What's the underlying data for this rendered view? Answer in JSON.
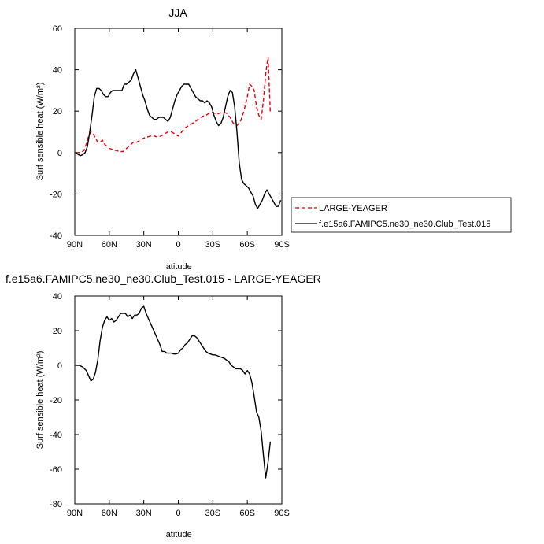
{
  "chart_data": [
    {
      "type": "line",
      "title": "JJA",
      "xlabel": "latitude",
      "ylabel": "Surf sensible heat (W/m²)",
      "xlim": [
        90,
        -90
      ],
      "ylim": [
        -40,
        60
      ],
      "x_ticks": [
        "90N",
        "60N",
        "30N",
        "0",
        "30S",
        "60S",
        "90S"
      ],
      "x_tick_values": [
        90,
        60,
        30,
        0,
        -30,
        -60,
        -90
      ],
      "y_ticks": [
        "-40",
        "-20",
        "0",
        "20",
        "40",
        "60"
      ],
      "legend_position": "right",
      "series": [
        {
          "name": "LARGE-YEAGER",
          "color": "#e8000b",
          "dash": "dashed",
          "x": [
            89,
            85,
            82,
            80,
            78,
            76,
            74,
            72,
            70,
            68,
            66,
            64,
            62,
            60,
            57,
            54,
            51,
            48,
            45,
            42,
            39,
            36,
            33,
            30,
            27,
            24,
            21,
            18,
            15,
            12,
            9,
            6,
            3,
            0,
            -3,
            -6,
            -9,
            -12,
            -15,
            -18,
            -21,
            -24,
            -27,
            -30,
            -33,
            -36,
            -39,
            -42,
            -45,
            -48,
            -51,
            -54,
            -57,
            -60,
            -62,
            -64,
            -66,
            -68,
            -70,
            -72,
            -74,
            -76,
            -78,
            -80
          ],
          "y": [
            0,
            0,
            1,
            4,
            8,
            10,
            9,
            7,
            5,
            5,
            6,
            4,
            3,
            2,
            1.5,
            1,
            0.5,
            0.5,
            2,
            3.5,
            5,
            5,
            6,
            7,
            7.5,
            8,
            8,
            7.5,
            8,
            9,
            10,
            10,
            9,
            8,
            10,
            12,
            13,
            14,
            15,
            16.5,
            17.5,
            18,
            19,
            19.5,
            18.5,
            19,
            19.5,
            19,
            17,
            14,
            13,
            15,
            20,
            27,
            33,
            32,
            30,
            22,
            18,
            16,
            25,
            38,
            46,
            19
          ]
        },
        {
          "name": "f.e15a6.FAMIPC5.ne30_ne30.Club_Test.015",
          "color": "#000000",
          "dash": "solid",
          "x": [
            89,
            87,
            85,
            83,
            81,
            79,
            77,
            75,
            73,
            71,
            69,
            67,
            65,
            63,
            61,
            59,
            57,
            55,
            53,
            51,
            49,
            47,
            45,
            43,
            41,
            39,
            37,
            35,
            33,
            31,
            29,
            27,
            25,
            23,
            21,
            19,
            17,
            15,
            13,
            11,
            9,
            7,
            5,
            3,
            1,
            -1,
            -3,
            -5,
            -7,
            -9,
            -11,
            -13,
            -15,
            -17,
            -19,
            -21,
            -23,
            -25,
            -27,
            -29,
            -31,
            -33,
            -35,
            -37,
            -39,
            -41,
            -43,
            -45,
            -47,
            -49,
            -51,
            -53,
            -55,
            -57,
            -59,
            -61,
            -63,
            -65,
            -67,
            -69,
            -71,
            -73,
            -75,
            -77,
            -79,
            -81,
            -83,
            -85,
            -87,
            -89
          ],
          "y": [
            0,
            -1,
            -1.5,
            -1,
            0,
            3,
            10,
            18,
            27,
            31,
            31,
            30,
            28,
            27,
            27,
            29,
            30,
            30,
            30,
            30,
            30,
            33,
            33,
            34,
            35,
            38,
            40,
            36,
            32,
            28,
            25,
            21,
            18,
            17,
            16,
            16,
            17,
            17,
            17,
            16,
            15,
            17,
            21,
            25,
            28,
            30,
            32,
            33,
            33,
            33,
            31,
            29,
            27,
            26,
            25,
            25,
            24,
            25,
            24,
            22,
            18,
            15,
            13,
            14,
            17,
            22,
            27,
            30,
            29,
            22,
            10,
            -5,
            -13,
            -15,
            -16,
            -17,
            -19,
            -21,
            -25,
            -27,
            -25,
            -23,
            -20,
            -18,
            -20,
            -22,
            -24,
            -26,
            -26,
            -23
          ]
        }
      ]
    },
    {
      "type": "line",
      "title": "f.e15a6.FAMIPC5.ne30_ne30.Club_Test.015 - LARGE-YEAGER",
      "xlabel": "latitude",
      "ylabel": "Surf sensible heat (W/m²)",
      "xlim": [
        90,
        -90
      ],
      "ylim": [
        -80,
        40
      ],
      "x_ticks": [
        "90N",
        "60N",
        "30N",
        "0",
        "30S",
        "60S",
        "90S"
      ],
      "x_tick_values": [
        90,
        60,
        30,
        0,
        -30,
        -60,
        -90
      ],
      "y_ticks": [
        "-80",
        "-60",
        "-40",
        "-20",
        "0",
        "20",
        "40"
      ],
      "series": [
        {
          "color": "#000000",
          "dash": "solid",
          "x": [
            89,
            86,
            83,
            80,
            78,
            76,
            74,
            72,
            70,
            68,
            66,
            64,
            62,
            60,
            58,
            56,
            54,
            52,
            50,
            48,
            46,
            44,
            42,
            40,
            38,
            36,
            34,
            32,
            30,
            28,
            26,
            24,
            22,
            20,
            18,
            16,
            14,
            12,
            10,
            8,
            6,
            4,
            2,
            0,
            -2,
            -4,
            -6,
            -8,
            -10,
            -12,
            -14,
            -16,
            -18,
            -20,
            -22,
            -24,
            -26,
            -28,
            -30,
            -32,
            -34,
            -36,
            -38,
            -40,
            -42,
            -44,
            -46,
            -48,
            -50,
            -52,
            -54,
            -56,
            -58,
            -60,
            -62,
            -64,
            -66,
            -68,
            -70,
            -72,
            -74,
            -76,
            -78,
            -80
          ],
          "y": [
            0,
            0,
            -1,
            -3,
            -6,
            -9,
            -8,
            -4,
            3,
            14,
            22,
            26,
            28,
            26,
            27,
            25,
            26,
            28,
            30,
            30,
            30,
            28,
            29,
            27,
            29,
            29,
            30,
            33,
            34,
            30,
            27,
            24,
            21,
            18,
            15,
            12,
            8,
            8,
            7,
            7,
            7,
            6.5,
            6.5,
            7,
            9,
            10,
            12,
            13,
            15,
            17,
            17,
            16,
            14,
            12,
            10,
            8,
            7,
            6.5,
            6,
            6,
            5.5,
            5,
            4.5,
            4,
            3,
            2,
            0,
            -1,
            -2,
            -2,
            -2,
            -3,
            -5,
            -3,
            -5,
            -10,
            -18,
            -27,
            -30,
            -38,
            -52,
            -65,
            -56,
            -44
          ]
        }
      ]
    }
  ]
}
